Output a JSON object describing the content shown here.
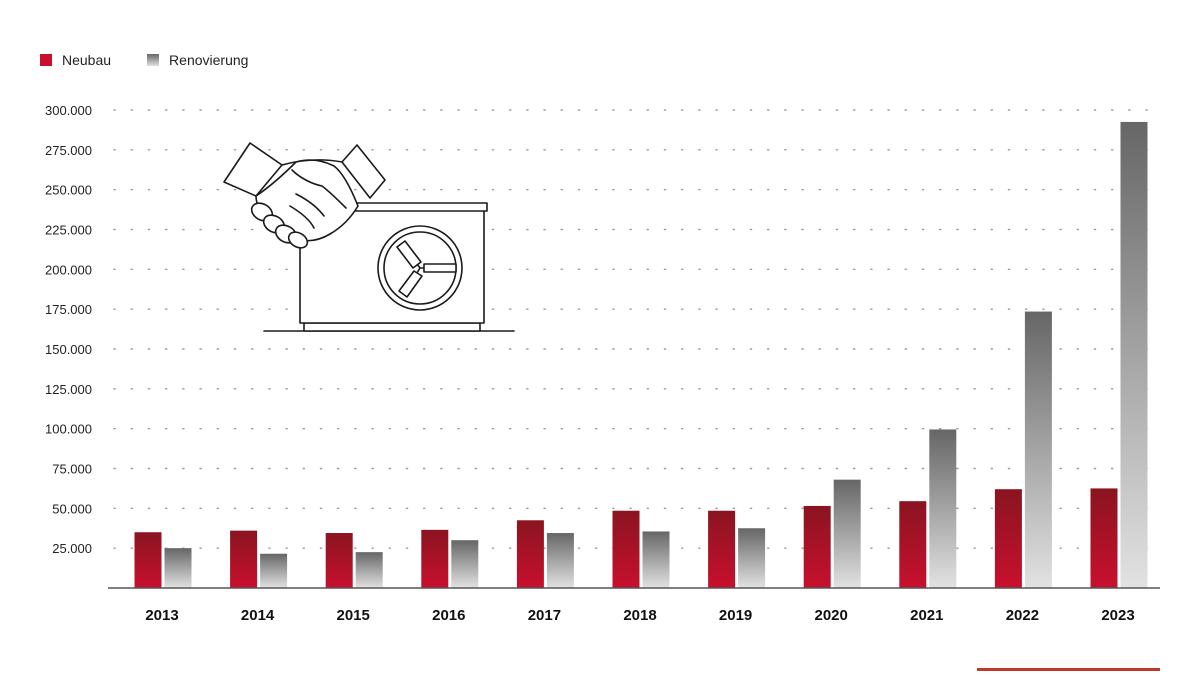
{
  "colors": {
    "neubau_top": "#8a1420",
    "neubau_bottom": "#c8102e",
    "renov_top": "#666666",
    "renov_bottom": "#e2e2e2",
    "grid": "#9a9a9a",
    "axis": "#555555",
    "accent": "#c0392b",
    "icon_stroke": "#1a1a1a"
  },
  "icon": "handshake-heat-pump-icon",
  "chart_data": {
    "type": "bar",
    "categories": [
      "2013",
      "2014",
      "2015",
      "2016",
      "2017",
      "2018",
      "2019",
      "2020",
      "2021",
      "2022",
      "2023"
    ],
    "series": [
      {
        "name": "Neubau",
        "values": [
          35000,
          36000,
          34500,
          36500,
          42500,
          48500,
          48500,
          51500,
          54500,
          62000,
          62500
        ]
      },
      {
        "name": "Renovierung",
        "values": [
          25000,
          21500,
          22500,
          30000,
          34500,
          35500,
          37500,
          68000,
          99500,
          173500,
          292500
        ]
      }
    ],
    "yticks": [
      25000,
      50000,
      75000,
      100000,
      125000,
      150000,
      175000,
      200000,
      225000,
      250000,
      275000,
      300000
    ],
    "ytick_labels": [
      "25.000",
      "50.000",
      "75.000",
      "100.000",
      "125.000",
      "150.000",
      "175.000",
      "200.000",
      "225.000",
      "250.000",
      "275.000",
      "300.000"
    ],
    "ylim": [
      0,
      300000
    ],
    "grid": true,
    "legend_position": "top-left"
  }
}
